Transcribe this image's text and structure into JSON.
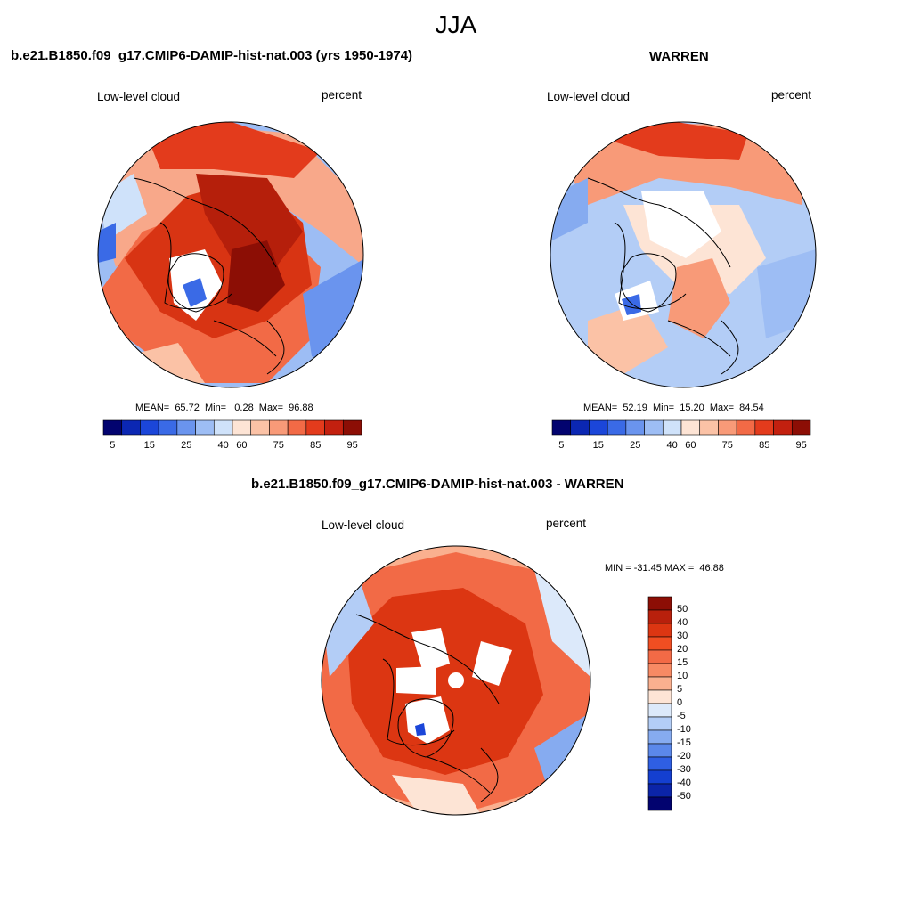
{
  "season": "JJA",
  "panels": [
    {
      "title": "b.e21.B1850.f09_g17.CMIP6-DAMIP-hist-nat.003 (yrs 1950-1974)",
      "variable": "Low-level cloud",
      "units": "percent",
      "stats": "MEAN=  65.72  Min=   0.28  Max=  96.88"
    },
    {
      "title": "WARREN",
      "variable": "Low-level cloud",
      "units": "percent",
      "stats": "MEAN=  52.19  Min=  15.20  Max=  84.54"
    },
    {
      "title": "b.e21.B1850.f09_g17.CMIP6-DAMIP-hist-nat.003 - WARREN",
      "variable": "Low-level cloud",
      "units": "percent",
      "stats": "MIN = -31.45 MAX =  46.88"
    }
  ],
  "colorbar_abs": {
    "ticks": [
      "5",
      "15",
      "25",
      "40",
      "60",
      "75",
      "85",
      "95"
    ],
    "colors": [
      "#02036f",
      "#0b27b3",
      "#1b46d9",
      "#3a6ae6",
      "#6a94ee",
      "#9dbdf4",
      "#cfe2fa",
      "#fde4d5",
      "#fbc2a6",
      "#f89a78",
      "#f26a46",
      "#e33b1c",
      "#c3200f",
      "#8c0e05"
    ]
  },
  "colorbar_diff": {
    "ticks": [
      "50",
      "40",
      "30",
      "20",
      "15",
      "10",
      "5",
      "0",
      "-5",
      "-10",
      "-15",
      "-20",
      "-30",
      "-40",
      "-50"
    ],
    "colors": [
      "#8c0e05",
      "#b8200c",
      "#dc3612",
      "#f04e22",
      "#f26a46",
      "#f78a64",
      "#fab08f",
      "#fde4d5",
      "#dce9fa",
      "#b3cdf6",
      "#86abf0",
      "#5b88ea",
      "#2f5fe3",
      "#143fd0",
      "#0b24a8",
      "#02036f"
    ]
  }
}
